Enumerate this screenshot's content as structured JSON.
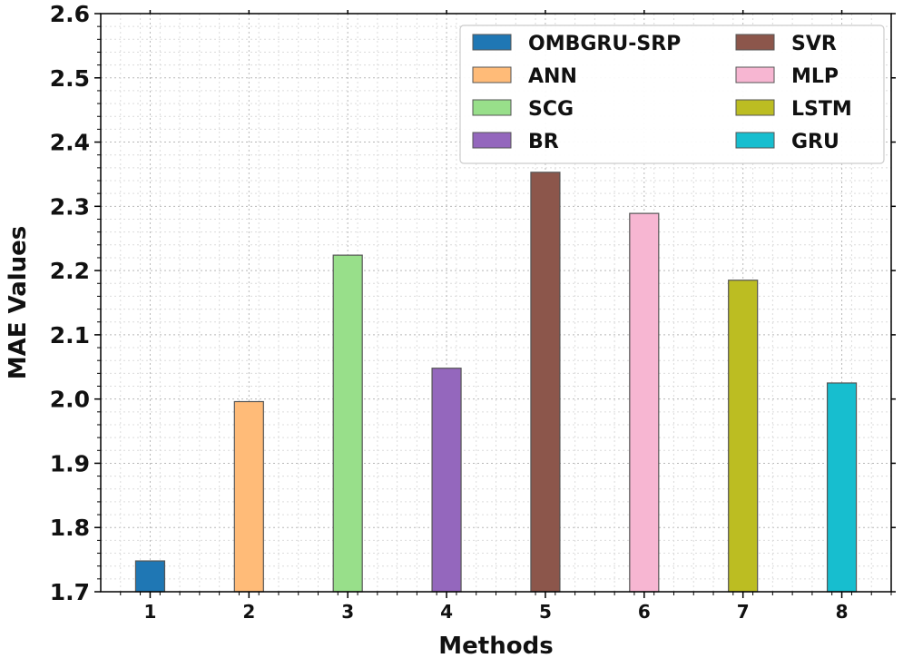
{
  "chart_data": {
    "type": "bar",
    "title": "",
    "xlabel": "Methods",
    "ylabel": "MAE Values",
    "categories": [
      "1",
      "2",
      "3",
      "4",
      "5",
      "6",
      "7",
      "8"
    ],
    "series": [
      {
        "name": "OMBGRU-SRP",
        "x": "1",
        "value": 1.748,
        "color": "#1f77b4"
      },
      {
        "name": "ANN",
        "x": "2",
        "value": 1.996,
        "color": "#ffbb78"
      },
      {
        "name": "SCG",
        "x": "3",
        "value": 2.224,
        "color": "#98df8a"
      },
      {
        "name": "BR",
        "x": "4",
        "value": 2.048,
        "color": "#9467bd"
      },
      {
        "name": "SVR",
        "x": "5",
        "value": 2.353,
        "color": "#8c564b"
      },
      {
        "name": "MLP",
        "x": "6",
        "value": 2.289,
        "color": "#f7b6d2"
      },
      {
        "name": "LSTM",
        "x": "7",
        "value": 2.185,
        "color": "#bcbd22"
      },
      {
        "name": "GRU",
        "x": "8",
        "value": 2.025,
        "color": "#17becf"
      }
    ],
    "ylim": [
      1.7,
      2.6
    ],
    "yticks": [
      "1.7",
      "1.8",
      "1.9",
      "2.0",
      "2.1",
      "2.2",
      "2.3",
      "2.4",
      "2.5",
      "2.6"
    ],
    "grid": true,
    "legend_position": "top-right",
    "legend_columns": 2
  }
}
